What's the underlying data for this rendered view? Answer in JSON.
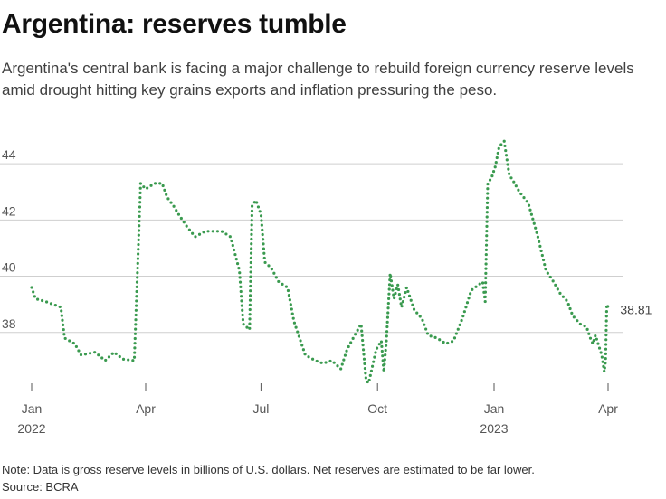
{
  "header": {
    "title": "Argentina: reserves tumble",
    "subtitle": "Argentina's central bank is facing a major challenge to rebuild foreign currency reserve levels amid drought hitting key grains exports and inflation pressuring the peso."
  },
  "footer": {
    "note": "Note: Data is gross reserve levels in billions of U.S. dollars. Net reserves are estimated to be far lower.",
    "source": "Source: BCRA"
  },
  "chart_data": {
    "type": "line",
    "title": "Argentina: reserves tumble",
    "ylabel": "",
    "xlabel": "",
    "ylim": [
      36,
      45
    ],
    "yticks": [
      38,
      40,
      42,
      44
    ],
    "grid": true,
    "line_style": "dotted",
    "color": "#3a9a4f",
    "x_ticks": [
      {
        "date": "2022-01-01",
        "label": "Jan",
        "sublabel": "2022"
      },
      {
        "date": "2022-04-01",
        "label": "Apr",
        "sublabel": ""
      },
      {
        "date": "2022-07-01",
        "label": "Jul",
        "sublabel": ""
      },
      {
        "date": "2022-10-01",
        "label": "Oct",
        "sublabel": ""
      },
      {
        "date": "2023-01-01",
        "label": "Jan",
        "sublabel": "2023"
      },
      {
        "date": "2023-04-01",
        "label": "Apr",
        "sublabel": ""
      }
    ],
    "end_label": "38.81",
    "series": [
      {
        "values": [
          {
            "x": "2022-01-01",
            "y": 39.6
          },
          {
            "x": "2022-01-04",
            "y": 39.2
          },
          {
            "x": "2022-01-12",
            "y": 39.1
          },
          {
            "x": "2022-01-24",
            "y": 38.9
          },
          {
            "x": "2022-01-27",
            "y": 37.8
          },
          {
            "x": "2022-02-04",
            "y": 37.6
          },
          {
            "x": "2022-02-09",
            "y": 37.2
          },
          {
            "x": "2022-02-20",
            "y": 37.3
          },
          {
            "x": "2022-02-28",
            "y": 37.0
          },
          {
            "x": "2022-03-07",
            "y": 37.3
          },
          {
            "x": "2022-03-14",
            "y": 37.05
          },
          {
            "x": "2022-03-23",
            "y": 37.0
          },
          {
            "x": "2022-03-28",
            "y": 43.3
          },
          {
            "x": "2022-04-01",
            "y": 43.1
          },
          {
            "x": "2022-04-08",
            "y": 43.3
          },
          {
            "x": "2022-04-14",
            "y": 43.3
          },
          {
            "x": "2022-04-18",
            "y": 42.8
          },
          {
            "x": "2022-04-23",
            "y": 42.5
          },
          {
            "x": "2022-04-27",
            "y": 42.2
          },
          {
            "x": "2022-05-03",
            "y": 41.8
          },
          {
            "x": "2022-05-10",
            "y": 41.4
          },
          {
            "x": "2022-05-18",
            "y": 41.6
          },
          {
            "x": "2022-05-25",
            "y": 41.6
          },
          {
            "x": "2022-05-31",
            "y": 41.6
          },
          {
            "x": "2022-06-07",
            "y": 41.4
          },
          {
            "x": "2022-06-14",
            "y": 40.2
          },
          {
            "x": "2022-06-17",
            "y": 38.3
          },
          {
            "x": "2022-06-22",
            "y": 38.1
          },
          {
            "x": "2022-06-24",
            "y": 42.5
          },
          {
            "x": "2022-06-27",
            "y": 42.7
          },
          {
            "x": "2022-07-01",
            "y": 42.2
          },
          {
            "x": "2022-07-04",
            "y": 40.5
          },
          {
            "x": "2022-07-09",
            "y": 40.3
          },
          {
            "x": "2022-07-15",
            "y": 39.8
          },
          {
            "x": "2022-07-22",
            "y": 39.6
          },
          {
            "x": "2022-07-27",
            "y": 38.4
          },
          {
            "x": "2022-07-30",
            "y": 38.0
          },
          {
            "x": "2022-08-05",
            "y": 37.2
          },
          {
            "x": "2022-08-13",
            "y": 37.0
          },
          {
            "x": "2022-08-19",
            "y": 36.9
          },
          {
            "x": "2022-08-26",
            "y": 37.0
          },
          {
            "x": "2022-09-02",
            "y": 36.7
          },
          {
            "x": "2022-09-07",
            "y": 37.4
          },
          {
            "x": "2022-09-13",
            "y": 37.9
          },
          {
            "x": "2022-09-18",
            "y": 38.3
          },
          {
            "x": "2022-09-22",
            "y": 36.3
          },
          {
            "x": "2022-09-24",
            "y": 36.2
          },
          {
            "x": "2022-09-30",
            "y": 37.4
          },
          {
            "x": "2022-10-04",
            "y": 37.7
          },
          {
            "x": "2022-10-06",
            "y": 36.6
          },
          {
            "x": "2022-10-08",
            "y": 37.7
          },
          {
            "x": "2022-10-11",
            "y": 40.1
          },
          {
            "x": "2022-10-14",
            "y": 39.2
          },
          {
            "x": "2022-10-17",
            "y": 39.7
          },
          {
            "x": "2022-10-20",
            "y": 38.9
          },
          {
            "x": "2022-10-24",
            "y": 39.6
          },
          {
            "x": "2022-10-30",
            "y": 38.8
          },
          {
            "x": "2022-11-05",
            "y": 38.5
          },
          {
            "x": "2022-11-10",
            "y": 37.9
          },
          {
            "x": "2022-11-17",
            "y": 37.8
          },
          {
            "x": "2022-11-24",
            "y": 37.6
          },
          {
            "x": "2022-11-30",
            "y": 37.7
          },
          {
            "x": "2022-12-07",
            "y": 38.5
          },
          {
            "x": "2022-12-14",
            "y": 39.5
          },
          {
            "x": "2022-12-20",
            "y": 39.7
          },
          {
            "x": "2022-12-23",
            "y": 39.8
          },
          {
            "x": "2022-12-25",
            "y": 39.1
          },
          {
            "x": "2022-12-27",
            "y": 43.3
          },
          {
            "x": "2022-12-30",
            "y": 43.5
          },
          {
            "x": "2023-01-02",
            "y": 43.9
          },
          {
            "x": "2023-01-05",
            "y": 44.6
          },
          {
            "x": "2023-01-09",
            "y": 44.8
          },
          {
            "x": "2023-01-13",
            "y": 43.6
          },
          {
            "x": "2023-01-16",
            "y": 43.4
          },
          {
            "x": "2023-01-21",
            "y": 43.0
          },
          {
            "x": "2023-01-28",
            "y": 42.6
          },
          {
            "x": "2023-02-04",
            "y": 41.5
          },
          {
            "x": "2023-02-11",
            "y": 40.2
          },
          {
            "x": "2023-02-17",
            "y": 39.8
          },
          {
            "x": "2023-02-22",
            "y": 39.4
          },
          {
            "x": "2023-02-28",
            "y": 39.1
          },
          {
            "x": "2023-03-04",
            "y": 38.6
          },
          {
            "x": "2023-03-10",
            "y": 38.3
          },
          {
            "x": "2023-03-15",
            "y": 38.2
          },
          {
            "x": "2023-03-18",
            "y": 37.8
          },
          {
            "x": "2023-03-20",
            "y": 37.6
          },
          {
            "x": "2023-03-22",
            "y": 37.9
          },
          {
            "x": "2023-03-27",
            "y": 37.2
          },
          {
            "x": "2023-03-29",
            "y": 36.6
          },
          {
            "x": "2023-03-30",
            "y": 37.0
          },
          {
            "x": "2023-03-31",
            "y": 39.0
          },
          {
            "x": "2023-04-02",
            "y": 38.81
          }
        ]
      }
    ]
  }
}
